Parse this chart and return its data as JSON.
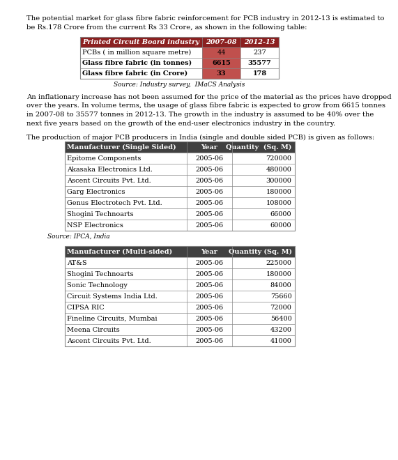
{
  "intro_text_lines": [
    "The potential market for glass fibre fabric reinforcement for PCB industry in 2012-13 is estimated to",
    "be Rs.178 Crore from the current Rs 33 Crore, as shown in the following table:"
  ],
  "table1_header": [
    "Printed Circuit Board industry",
    "2007-08",
    "2012-13"
  ],
  "table1_rows": [
    [
      "PCBs ( in million square metre)",
      "44",
      "237"
    ],
    [
      "Glass fibre fabric (in tonnes)",
      "6615",
      "35577"
    ],
    [
      "Glass fibre fabric (in Crore)",
      "33",
      "178"
    ]
  ],
  "table1_source": "Source: Industry survey,  IMaCS Analysis",
  "middle_text_lines": [
    "An inflationary increase has not been assumed for the price of the material as the prices have dropped",
    "over the years. In volume terms, the usage of glass fibre fabric is expected to grow from 6615 tonnes",
    "in 2007-08 to 35577 tonnes in 2012-13. The growth in the industry is assumed to be 40% over the",
    "next five years based on the growth of the end-user electronics industry in the country."
  ],
  "intro_text2": "The production of major PCB producers in India (single and double sided PCB) is given as follows:",
  "table2_header": [
    "Manufacturer (Single Sided)",
    "Year",
    "Quantity  (Sq. M)"
  ],
  "table2_rows": [
    [
      "Epitome Components",
      "2005-06",
      "720000"
    ],
    [
      "Akasaka Electronics Ltd.",
      "2005-06",
      "480000"
    ],
    [
      "Ascent Circuits Pvt. Ltd.",
      "2005-06",
      "300000"
    ],
    [
      "Garg Electronics",
      "2005-06",
      "180000"
    ],
    [
      "Genus Electrotech Pvt. Ltd.",
      "2005-06",
      "108000"
    ],
    [
      "Shogini Technoarts",
      "2005-06",
      "66000"
    ],
    [
      "NSP Electronics",
      "2005-06",
      "60000"
    ]
  ],
  "table2_source": "Source: IPCA, India",
  "table3_header": [
    "Manufacturer (Multi-sided)",
    "Year",
    "Quantity (Sq. M)"
  ],
  "table3_rows": [
    [
      "AT&S",
      "2005-06",
      "225000"
    ],
    [
      "Shogini Technoarts",
      "2005-06",
      "180000"
    ],
    [
      "Sonic Technology",
      "2005-06",
      "84000"
    ],
    [
      "Circuit Systems India Ltd.",
      "2005-06",
      "75660"
    ],
    [
      "CIPSA RIC",
      "2005-06",
      "72000"
    ],
    [
      "Fineline Circuits, Mumbai",
      "2005-06",
      "56400"
    ],
    [
      "Meena Circuits",
      "2005-06",
      "43200"
    ],
    [
      "Ascent Circuits Pvt. Ltd.",
      "2005-06",
      "41000"
    ]
  ],
  "t1_header_bg": "#8B2020",
  "t1_col2_bg": "#C0504D",
  "t1_header_text": "#FFFFFF",
  "t1_bold_rows": [
    1,
    2
  ],
  "t2_header_bg": "#404040",
  "t2_header_text": "#FFFFFF",
  "border_color": "#888888",
  "body_text_color": "#000000",
  "bg_color": "#FFFFFF",
  "fs_body": 7.2,
  "fs_table1": 7.0,
  "fs_table23": 7.0,
  "fs_source": 6.5
}
